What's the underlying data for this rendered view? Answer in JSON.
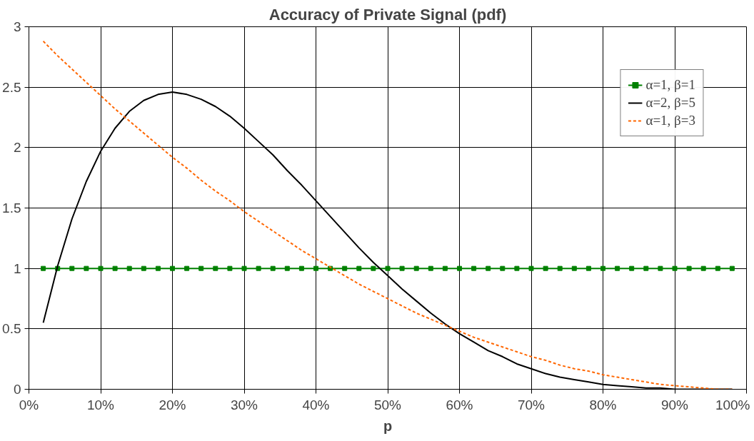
{
  "chart_data": {
    "type": "line",
    "title": "Accuracy of Private Signal (pdf)",
    "xlabel": "p",
    "x": [
      2,
      4,
      6,
      8,
      10,
      12,
      14,
      16,
      18,
      20,
      22,
      24,
      26,
      28,
      30,
      32,
      34,
      36,
      38,
      40,
      42,
      44,
      46,
      48,
      50,
      52,
      54,
      56,
      58,
      60,
      62,
      64,
      66,
      68,
      70,
      72,
      74,
      76,
      78,
      80,
      82,
      84,
      86,
      88,
      90,
      92,
      94,
      96,
      98
    ],
    "series": [
      {
        "name": "α=1, β=1",
        "color": "#008000",
        "marker": "square",
        "line_style": "solid",
        "values": [
          1,
          1,
          1,
          1,
          1,
          1,
          1,
          1,
          1,
          1,
          1,
          1,
          1,
          1,
          1,
          1,
          1,
          1,
          1,
          1,
          1,
          1,
          1,
          1,
          1,
          1,
          1,
          1,
          1,
          1,
          1,
          1,
          1,
          1,
          1,
          1,
          1,
          1,
          1,
          1,
          1,
          1,
          1,
          1,
          1,
          1,
          1,
          1,
          1
        ]
      },
      {
        "name": "α=2, β=5",
        "color": "#000000",
        "marker": "none",
        "line_style": "solid",
        "values": [
          0.55,
          1.02,
          1.41,
          1.72,
          1.97,
          2.16,
          2.3,
          2.39,
          2.44,
          2.46,
          2.44,
          2.4,
          2.34,
          2.26,
          2.16,
          2.05,
          1.94,
          1.81,
          1.69,
          1.56,
          1.43,
          1.3,
          1.17,
          1.05,
          0.94,
          0.83,
          0.73,
          0.63,
          0.54,
          0.46,
          0.39,
          0.32,
          0.27,
          0.21,
          0.17,
          0.13,
          0.1,
          0.08,
          0.06,
          0.04,
          0.03,
          0.02,
          0.01,
          0.01,
          0,
          0,
          0,
          0,
          0
        ]
      },
      {
        "name": "α=1, β=3",
        "color": "#ff6600",
        "marker": "none",
        "line_style": "dotted",
        "values": [
          2.88,
          2.76,
          2.65,
          2.54,
          2.43,
          2.32,
          2.22,
          2.12,
          2.02,
          1.92,
          1.83,
          1.73,
          1.64,
          1.56,
          1.47,
          1.39,
          1.31,
          1.23,
          1.15,
          1.08,
          1.01,
          0.94,
          0.87,
          0.81,
          0.75,
          0.69,
          0.63,
          0.58,
          0.53,
          0.48,
          0.43,
          0.39,
          0.35,
          0.31,
          0.27,
          0.24,
          0.2,
          0.17,
          0.15,
          0.12,
          0.1,
          0.08,
          0.06,
          0.04,
          0.03,
          0.02,
          0.01,
          0,
          0
        ]
      }
    ],
    "xlim": [
      0,
      100
    ],
    "xticks": [
      {
        "value": 0,
        "label": "0%"
      },
      {
        "value": 10,
        "label": "10%"
      },
      {
        "value": 20,
        "label": "20%"
      },
      {
        "value": 30,
        "label": "30%"
      },
      {
        "value": 40,
        "label": "40%"
      },
      {
        "value": 50,
        "label": "50%"
      },
      {
        "value": 60,
        "label": "60%"
      },
      {
        "value": 70,
        "label": "70%"
      },
      {
        "value": 80,
        "label": "80%"
      },
      {
        "value": 90,
        "label": "90%"
      },
      {
        "value": 100,
        "label": "100%"
      }
    ],
    "ylim": [
      0,
      3
    ],
    "yticks": [
      0,
      0.5,
      1,
      1.5,
      2,
      2.5,
      3
    ],
    "grid": true,
    "legend": "top right"
  }
}
